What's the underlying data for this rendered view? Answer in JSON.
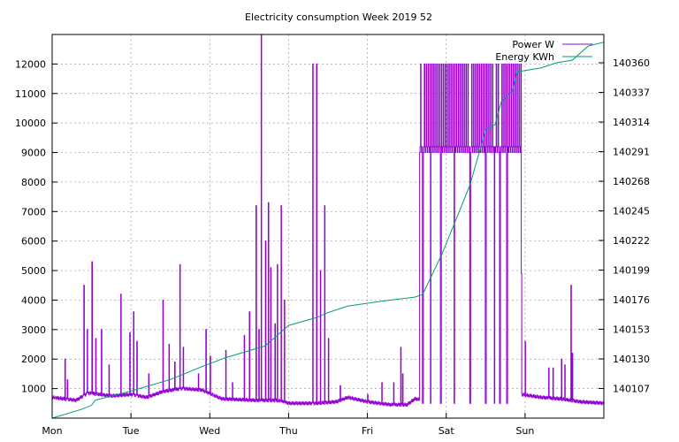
{
  "chart_data": {
    "type": "line",
    "title": "Electricity consumption Week 2019 52",
    "x_categories": [
      "Mon",
      "Tue",
      "Wed",
      "Thu",
      "Fri",
      "Sat",
      "Sun"
    ],
    "y_left": {
      "ylim": [
        0,
        13000
      ],
      "ticks": [
        1000,
        2000,
        3000,
        4000,
        5000,
        6000,
        7000,
        8000,
        9000,
        10000,
        11000,
        12000
      ]
    },
    "y_right": {
      "ylim": [
        140084,
        140382
      ],
      "ticks": [
        140107,
        140130,
        140153,
        140176,
        140199,
        140222,
        140245,
        140268,
        140291,
        140314,
        140337,
        140360
      ]
    },
    "grid": true,
    "legend_position": "top-right",
    "colors": {
      "power": "#9400d3",
      "energy": "#009e73"
    },
    "series": [
      {
        "name": "Power W",
        "axis": "left",
        "baseline": [
          [
            0,
            700
          ],
          [
            0.3,
            600
          ],
          [
            0.45,
            850
          ],
          [
            0.75,
            750
          ],
          [
            1.0,
            800
          ],
          [
            1.2,
            700
          ],
          [
            1.4,
            900
          ],
          [
            1.65,
            1000
          ],
          [
            1.9,
            950
          ],
          [
            2.15,
            650
          ],
          [
            2.6,
            600
          ],
          [
            2.85,
            600
          ],
          [
            3.0,
            500
          ],
          [
            3.35,
            500
          ],
          [
            3.6,
            550
          ],
          [
            3.75,
            700
          ],
          [
            4.0,
            550
          ],
          [
            4.3,
            450
          ],
          [
            4.5,
            450
          ],
          [
            4.6,
            650
          ],
          [
            4.95,
            500
          ],
          [
            5.3,
            500
          ],
          [
            5.45,
            400
          ],
          [
            5.7,
            500
          ],
          [
            5.95,
            800
          ],
          [
            6.2,
            700
          ],
          [
            6.45,
            650
          ],
          [
            6.7,
            550
          ],
          [
            7.0,
            500
          ]
        ],
        "spikes": [
          [
            0.16,
            2000
          ],
          [
            0.19,
            1300
          ],
          [
            0.4,
            4500
          ],
          [
            0.44,
            3000
          ],
          [
            0.5,
            5300
          ],
          [
            0.55,
            2700
          ],
          [
            0.62,
            3000
          ],
          [
            0.72,
            1800
          ],
          [
            0.87,
            4200
          ],
          [
            0.98,
            2900
          ],
          [
            1.03,
            3600
          ],
          [
            1.07,
            2600
          ],
          [
            1.22,
            1500
          ],
          [
            1.4,
            4000
          ],
          [
            1.48,
            2500
          ],
          [
            1.55,
            1900
          ],
          [
            1.62,
            5200
          ],
          [
            1.66,
            2400
          ],
          [
            1.85,
            1500
          ],
          [
            1.95,
            3000
          ],
          [
            2.0,
            2100
          ],
          [
            2.2,
            2300
          ],
          [
            2.28,
            1200
          ],
          [
            2.43,
            2800
          ],
          [
            2.5,
            3600
          ],
          [
            2.58,
            7200
          ],
          [
            2.62,
            3000
          ],
          [
            2.65,
            13000
          ],
          [
            2.7,
            6000
          ],
          [
            2.74,
            7300
          ],
          [
            2.77,
            5100
          ],
          [
            2.82,
            3200
          ],
          [
            2.85,
            5200
          ],
          [
            2.9,
            7200
          ],
          [
            2.94,
            4000
          ],
          [
            3.3,
            12000
          ],
          [
            3.35,
            12000
          ],
          [
            3.4,
            5000
          ],
          [
            3.45,
            7200
          ],
          [
            3.5,
            2700
          ],
          [
            3.65,
            1100
          ],
          [
            4.0,
            800
          ],
          [
            4.18,
            1200
          ],
          [
            4.33,
            1200
          ],
          [
            4.42,
            2400
          ],
          [
            4.44,
            1500
          ]
        ],
        "dense_band": {
          "x_range": [
            4.66,
            5.95
          ],
          "levels": [
            9000,
            12000
          ]
        },
        "deep_drops": [
          [
            4.7,
            500
          ],
          [
            4.8,
            500
          ],
          [
            4.93,
            500
          ],
          [
            5.1,
            500
          ],
          [
            5.3,
            600
          ],
          [
            5.5,
            400
          ],
          [
            5.61,
            400
          ],
          [
            5.68,
            400
          ],
          [
            5.77,
            700
          ]
        ],
        "late_spikes": [
          [
            5.9,
            5100
          ],
          [
            5.92,
            4900
          ],
          [
            6.0,
            2600
          ],
          [
            6.3,
            1700
          ],
          [
            6.35,
            1700
          ],
          [
            6.46,
            2000
          ],
          [
            6.5,
            1800
          ],
          [
            6.58,
            4500
          ],
          [
            6.6,
            2200
          ]
        ]
      },
      {
        "name": "Energy KWh",
        "axis": "right",
        "points": [
          [
            0,
            140084
          ],
          [
            0.38,
            140091
          ],
          [
            0.5,
            140094
          ],
          [
            0.55,
            140098
          ],
          [
            1.0,
            140105
          ],
          [
            1.5,
            140114
          ],
          [
            1.9,
            140124
          ],
          [
            2.2,
            140131
          ],
          [
            2.7,
            140140
          ],
          [
            2.87,
            140149
          ],
          [
            3.0,
            140156
          ],
          [
            3.35,
            140162
          ],
          [
            3.5,
            140166
          ],
          [
            3.75,
            140171
          ],
          [
            4.2,
            140175
          ],
          [
            4.6,
            140178
          ],
          [
            4.7,
            140180
          ],
          [
            4.95,
            140212
          ],
          [
            5.3,
            140265
          ],
          [
            5.5,
            140308
          ],
          [
            5.62,
            140312
          ],
          [
            5.7,
            140330
          ],
          [
            5.84,
            140338
          ],
          [
            5.9,
            140353
          ],
          [
            6.2,
            140356
          ],
          [
            6.4,
            140360
          ],
          [
            6.6,
            140362
          ],
          [
            6.8,
            140373
          ],
          [
            7.0,
            140376
          ]
        ]
      }
    ]
  }
}
